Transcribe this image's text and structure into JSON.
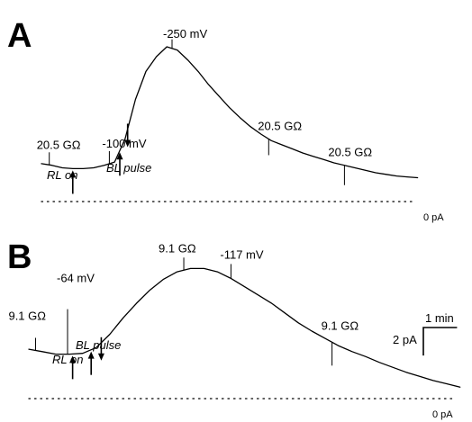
{
  "chart_data": [
    {
      "type": "line",
      "panel": "A",
      "x_unit": "min",
      "y_unit": "pA",
      "series": [
        {
          "x": [
            0,
            0.4,
            0.8,
            1.2,
            1.6,
            2.0,
            2.4,
            2.8,
            3.2,
            3.6,
            4.0,
            4.4,
            4.8,
            5.2,
            5.6,
            6.0,
            6.4,
            6.8,
            7.2,
            7.6,
            8.0,
            8.4,
            8.8,
            9.2,
            9.6,
            10.0,
            10.4,
            10.8,
            11.2,
            11.6,
            12.0,
            12.4,
            12.8,
            13.2,
            13.6,
            14.0,
            14.4
          ],
          "y": [
            2.3,
            2.2,
            2.05,
            2.0,
            2.0,
            2.05,
            2.2,
            2.4,
            3.8,
            6.2,
            7.9,
            8.8,
            9.4,
            9.2,
            8.6,
            7.9,
            7.1,
            6.4,
            5.7,
            5.1,
            4.55,
            4.1,
            3.7,
            3.45,
            3.2,
            2.95,
            2.75,
            2.55,
            2.35,
            2.2,
            2.05,
            1.9,
            1.75,
            1.65,
            1.55,
            1.5,
            1.45
          ]
        }
      ],
      "annotations": [
        {
          "id": "rA1",
          "x": 0.3,
          "text": "20.5 GΩ"
        },
        {
          "id": "vA1",
          "x": 2.6,
          "text": "-100 mV"
        },
        {
          "id": "vA2",
          "x": 5.0,
          "text": "-250 mV"
        },
        {
          "id": "rA2",
          "x": 8.7,
          "text": "20.5 GΩ"
        },
        {
          "id": "rA3",
          "x": 11.6,
          "text": "20.5 GΩ"
        }
      ],
      "arrows": [
        {
          "id": "aA1",
          "x": 1.2,
          "direction": "up"
        },
        {
          "id": "aA2",
          "x": 3.0,
          "direction": "up"
        },
        {
          "id": "aA3",
          "x": 3.3,
          "direction": "down"
        }
      ],
      "markers": [
        {
          "id": "RL_on",
          "text": "RL on"
        },
        {
          "id": "BL_pulse",
          "text": "BL pulse"
        }
      ],
      "zero_label": "0 pA"
    },
    {
      "type": "line",
      "panel": "B",
      "x_unit": "min",
      "y_unit": "pA",
      "series": [
        {
          "x": [
            0,
            0.4,
            0.8,
            1.2,
            1.6,
            2.0,
            2.4,
            2.8,
            3.2,
            3.6,
            4.0,
            4.4,
            4.8,
            5.2,
            5.6,
            6.0,
            6.4,
            6.8,
            7.2,
            7.6,
            8.0,
            8.4,
            8.8,
            9.2,
            9.6,
            10.0,
            10.4,
            10.8,
            11.2,
            11.6,
            12.0,
            12.4,
            12.8
          ],
          "y": [
            3.0,
            2.85,
            2.7,
            2.7,
            2.75,
            3.1,
            3.9,
            4.9,
            5.8,
            6.6,
            7.25,
            7.7,
            7.9,
            7.9,
            7.7,
            7.3,
            6.8,
            6.3,
            5.8,
            5.2,
            4.6,
            4.1,
            3.65,
            3.2,
            2.85,
            2.55,
            2.2,
            1.9,
            1.6,
            1.35,
            1.1,
            0.9,
            0.7
          ]
        }
      ],
      "annotations": [
        {
          "id": "rB1",
          "x": 0.2,
          "text": "9.1 GΩ"
        },
        {
          "id": "vB1",
          "x": 1.15,
          "text": "-64 mV"
        },
        {
          "id": "rB2",
          "x": 4.6,
          "text": "9.1 GΩ"
        },
        {
          "id": "vB2",
          "x": 6.0,
          "text": "-117 mV"
        },
        {
          "id": "rB3",
          "x": 9.0,
          "text": "9.1 GΩ"
        }
      ],
      "arrows": [
        {
          "id": "aB1",
          "x": 1.3,
          "direction": "up"
        },
        {
          "id": "aB2",
          "x": 1.85,
          "direction": "up"
        },
        {
          "id": "aB3",
          "x": 2.15,
          "direction": "down"
        }
      ],
      "markers": [
        {
          "id": "RL_on",
          "text": "RL on"
        },
        {
          "id": "BL_pulse",
          "text": "BL pulse"
        }
      ],
      "zero_label": "0 pA",
      "scale_bar": {
        "x_label": "1 min",
        "y_label": "2 pA",
        "x_value": 1,
        "y_value": 2
      }
    }
  ]
}
